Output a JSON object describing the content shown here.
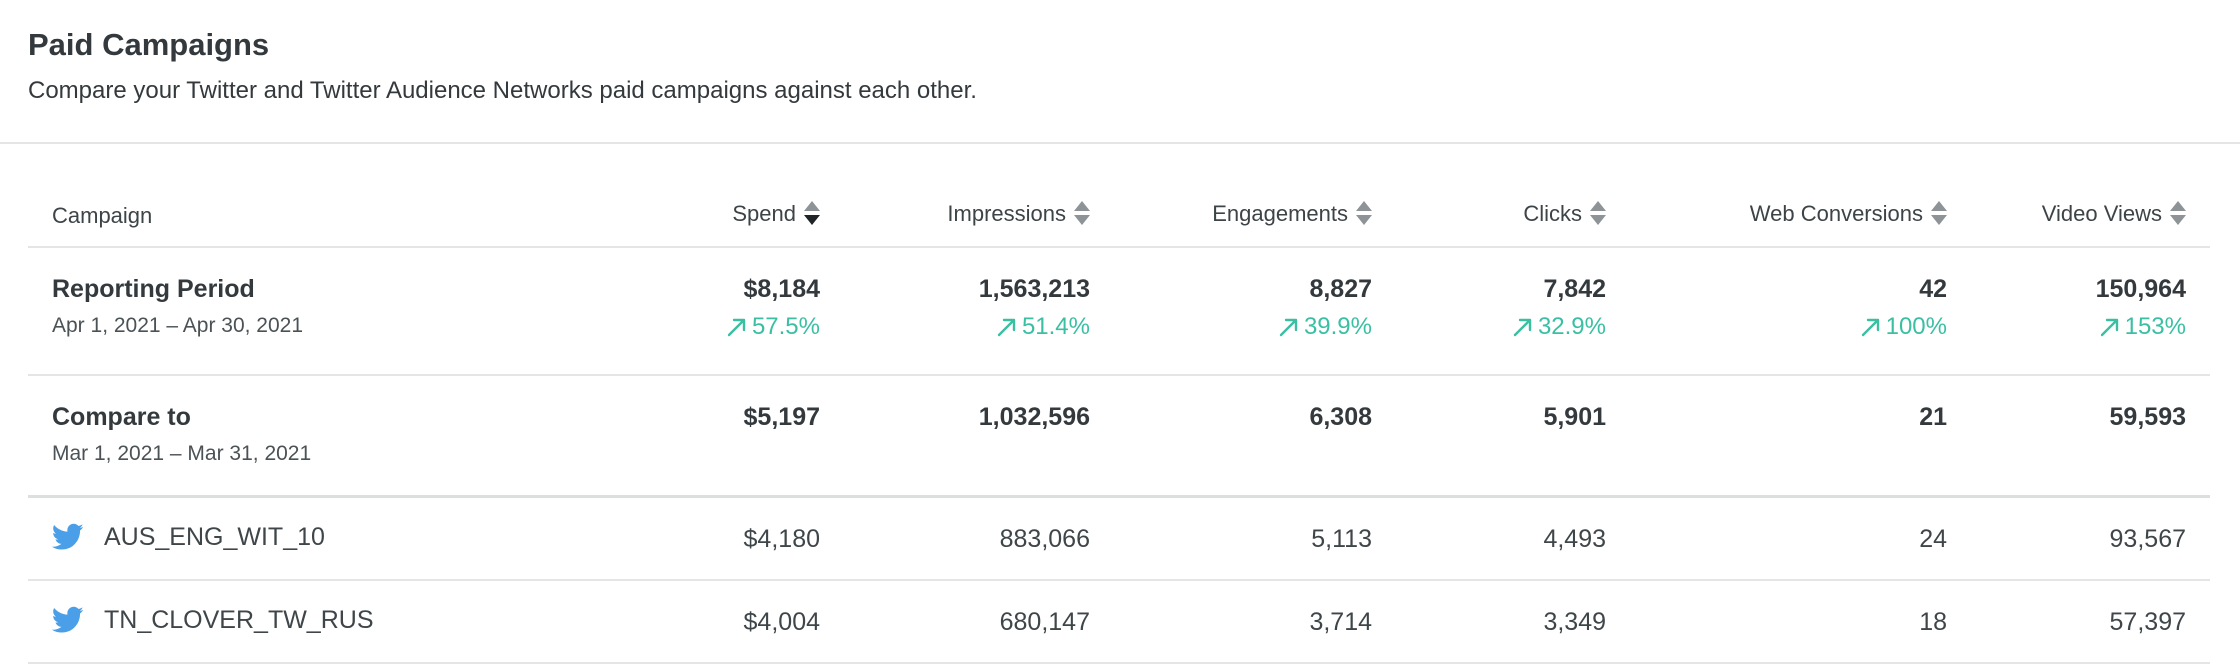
{
  "header": {
    "title": "Paid Campaigns",
    "subtitle": "Compare your Twitter and Twitter Audience Networks paid campaigns against each other."
  },
  "colors": {
    "positive": "#3bbfa3",
    "twitter": "#4a9fe8"
  },
  "columns": {
    "campaign": "Campaign",
    "spend": "Spend",
    "impressions": "Impressions",
    "engagements": "Engagements",
    "clicks": "Clicks",
    "web_conversions": "Web Conversions",
    "video_views": "Video Views"
  },
  "reporting_period": {
    "label": "Reporting Period",
    "dates": "Apr 1, 2021 – Apr 30, 2021",
    "spend": "$8,184",
    "impressions": "1,563,213",
    "engagements": "8,827",
    "clicks": "7,842",
    "web_conversions": "42",
    "video_views": "150,964",
    "delta_spend": "57.5%",
    "delta_impressions": "51.4%",
    "delta_engagements": "39.9%",
    "delta_clicks": "32.9%",
    "delta_web_conversions": "100%",
    "delta_video_views": "153%"
  },
  "compare_to": {
    "label": "Compare to",
    "dates": "Mar 1, 2021 – Mar 31, 2021",
    "spend": "$5,197",
    "impressions": "1,032,596",
    "engagements": "6,308",
    "clicks": "5,901",
    "web_conversions": "21",
    "video_views": "59,593"
  },
  "campaigns": [
    {
      "name": "AUS_ENG_WIT_10",
      "icon": "twitter-icon",
      "spend": "$4,180",
      "impressions": "883,066",
      "engagements": "5,113",
      "clicks": "4,493",
      "web_conversions": "24",
      "video_views": "93,567"
    },
    {
      "name": "TN_CLOVER_TW_RUS",
      "icon": "twitter-icon",
      "spend": "$4,004",
      "impressions": "680,147",
      "engagements": "3,714",
      "clicks": "3,349",
      "web_conversions": "18",
      "video_views": "57,397"
    }
  ]
}
